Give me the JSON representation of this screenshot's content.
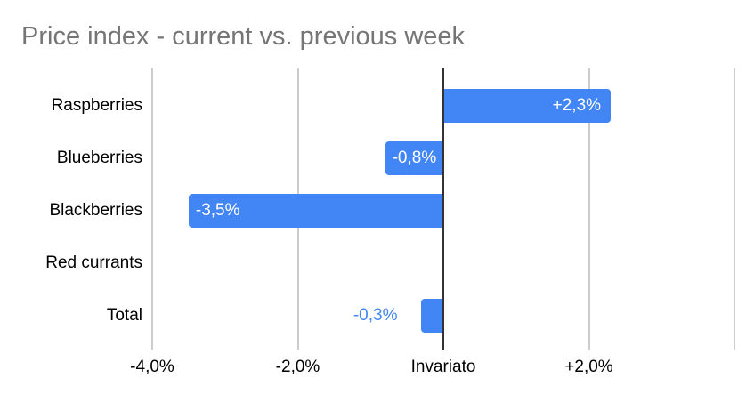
{
  "chart_data": {
    "type": "bar",
    "orientation": "horizontal",
    "title": "Price index - current vs. previous week",
    "categories": [
      "Raspberries",
      "Blueberries",
      "Blackberries",
      "Red currants",
      "Total"
    ],
    "values": [
      2.3,
      -0.8,
      -3.5,
      0,
      -0.3
    ],
    "bar_labels": [
      "+2,3%",
      "-0,8%",
      "-3,5%",
      "",
      "-0,3%"
    ],
    "bar_label_placement": [
      "inside-end",
      "inside-start",
      "inside-start",
      "none",
      "outside-start"
    ],
    "xlim": [
      -4,
      4
    ],
    "x_ticks": [
      {
        "value": -4,
        "label": "-4,0%"
      },
      {
        "value": -2,
        "label": "-2,0%"
      },
      {
        "value": 0,
        "label": "Invariato"
      },
      {
        "value": 2,
        "label": "+2,0%"
      },
      {
        "value": 4,
        "label": ""
      }
    ],
    "grid": true,
    "legend_position": "none",
    "colors": {
      "bar": "#4285f4",
      "label_inside": "#ffffff",
      "label_outside": "#4285f4",
      "gridline": "#cccccc",
      "zero_line": "#333333",
      "title": "#757575",
      "axis_text": "#000000",
      "background": "#ffffff"
    }
  }
}
